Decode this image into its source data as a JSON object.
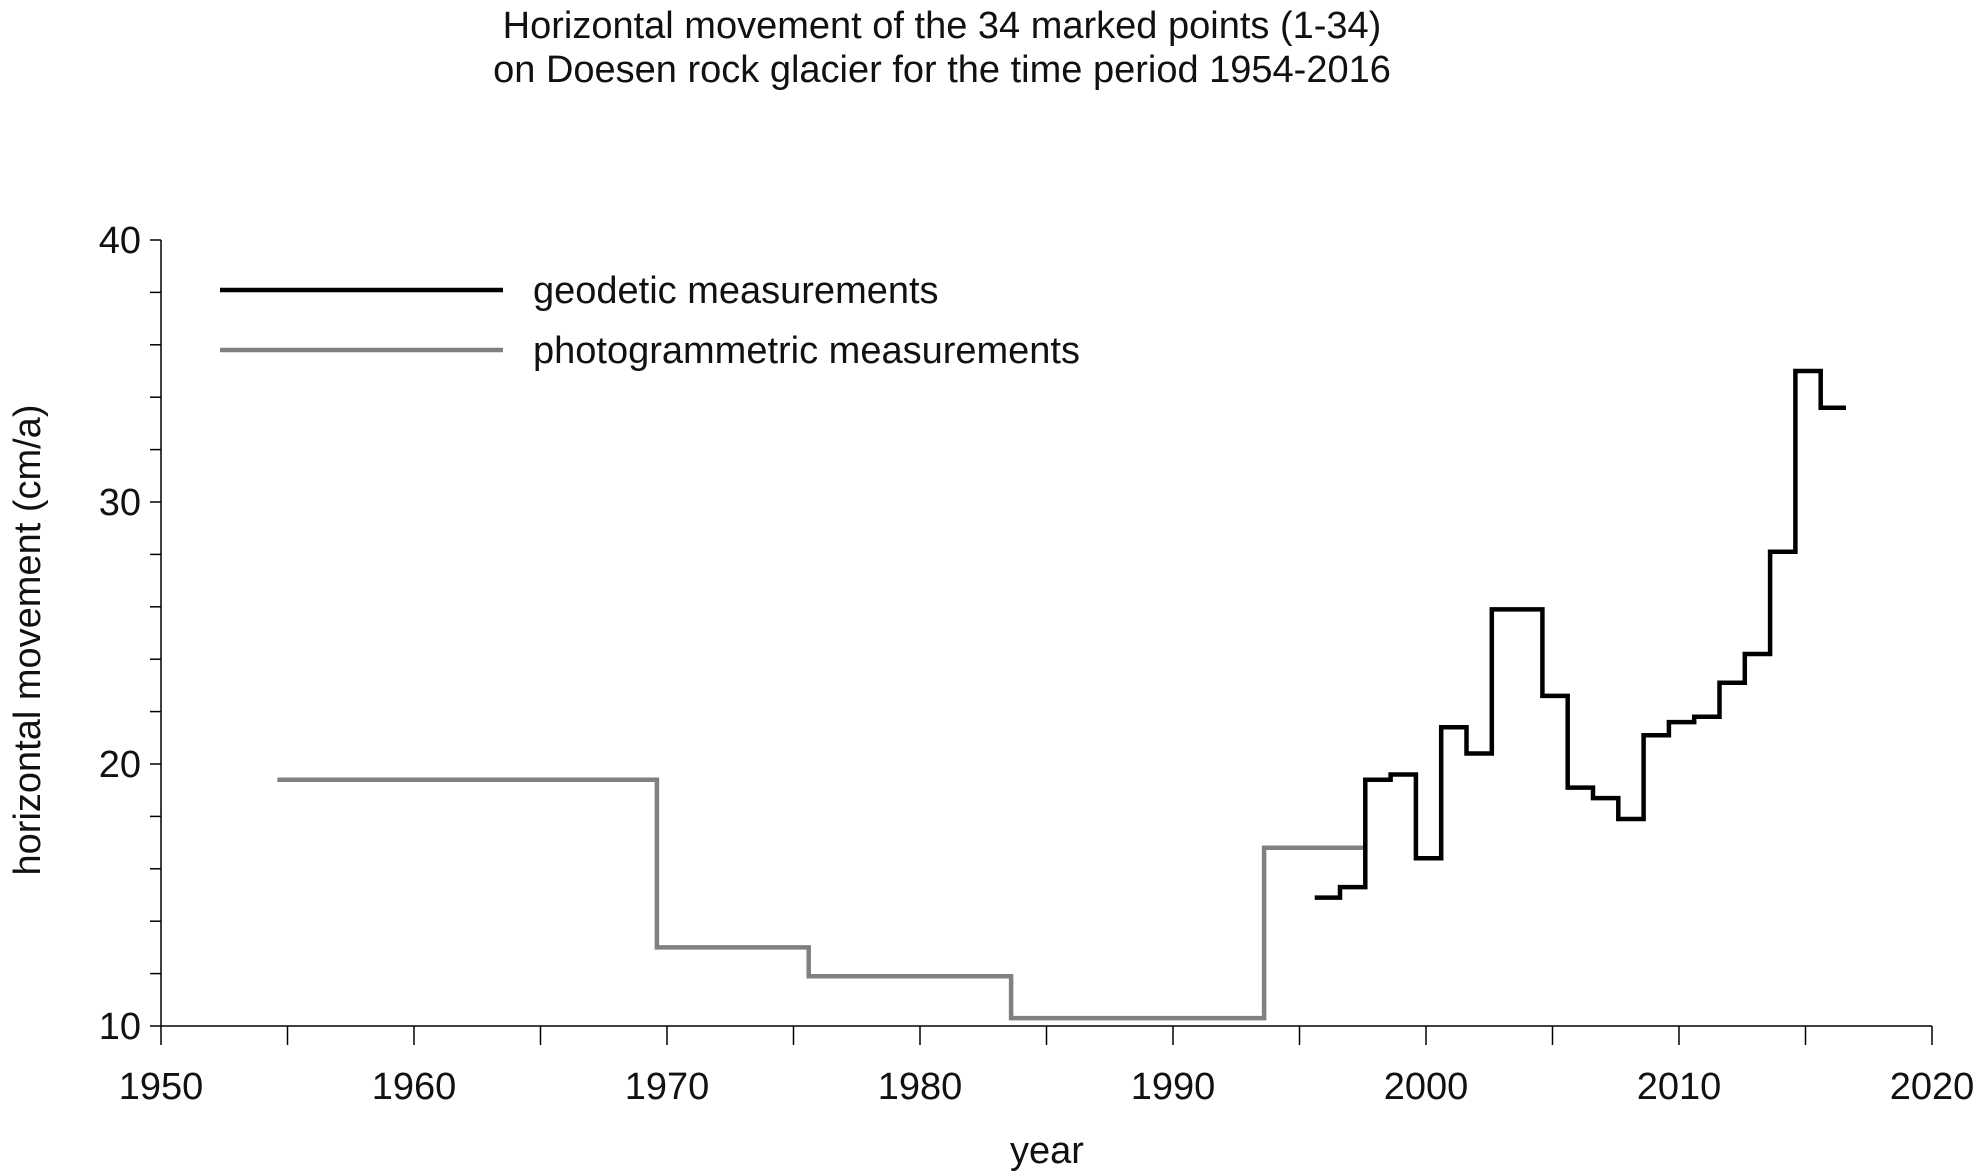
{
  "chart_data": {
    "type": "line",
    "title_lines": [
      "Horizontal movement of the 34 marked points (1-34)",
      "on Doesen rock glacier for the time period 1954-2016"
    ],
    "xlabel": "year",
    "ylabel": "horizontal movement (cm/a)",
    "xlim": [
      1950,
      2020
    ],
    "ylim": [
      10,
      40
    ],
    "x_ticks": [
      "1950",
      "1960",
      "1970",
      "1980",
      "1990",
      "2000",
      "2010",
      "2020"
    ],
    "y_ticks": [
      "10",
      "20",
      "30",
      "40"
    ],
    "grid": false,
    "legend_position": "top-left",
    "series": [
      {
        "name": "geodetic measurements",
        "color": "#000000",
        "step_segments": [
          {
            "from": 1995.6,
            "to": 1996.6,
            "value": 14.9
          },
          {
            "from": 1996.6,
            "to": 1997.6,
            "value": 15.3
          },
          {
            "from": 1997.6,
            "to": 1998.6,
            "value": 19.4
          },
          {
            "from": 1998.6,
            "to": 1999.6,
            "value": 19.6
          },
          {
            "from": 1999.6,
            "to": 2000.6,
            "value": 16.4
          },
          {
            "from": 2000.6,
            "to": 2001.6,
            "value": 21.4
          },
          {
            "from": 2001.6,
            "to": 2002.6,
            "value": 20.4
          },
          {
            "from": 2002.6,
            "to": 2004.6,
            "value": 25.9
          },
          {
            "from": 2004.6,
            "to": 2005.6,
            "value": 22.6
          },
          {
            "from": 2005.6,
            "to": 2006.6,
            "value": 19.1
          },
          {
            "from": 2006.6,
            "to": 2007.6,
            "value": 18.7
          },
          {
            "from": 2007.6,
            "to": 2008.6,
            "value": 17.9
          },
          {
            "from": 2008.6,
            "to": 2009.6,
            "value": 21.1
          },
          {
            "from": 2009.6,
            "to": 2010.6,
            "value": 21.6
          },
          {
            "from": 2010.6,
            "to": 2011.6,
            "value": 21.8
          },
          {
            "from": 2011.6,
            "to": 2012.6,
            "value": 23.1
          },
          {
            "from": 2012.6,
            "to": 2013.6,
            "value": 24.2
          },
          {
            "from": 2013.6,
            "to": 2014.6,
            "value": 28.1
          },
          {
            "from": 2014.6,
            "to": 2015.6,
            "value": 35.0
          },
          {
            "from": 2015.6,
            "to": 2016.6,
            "value": 33.6
          }
        ]
      },
      {
        "name": "photogrammetric measurements",
        "color": "#808080",
        "step_segments": [
          {
            "from": 1954.6,
            "to": 1969.6,
            "value": 19.4
          },
          {
            "from": 1969.6,
            "to": 1975.6,
            "value": 13.0
          },
          {
            "from": 1975.6,
            "to": 1983.6,
            "value": 11.9
          },
          {
            "from": 1983.6,
            "to": 1993.6,
            "value": 10.3
          },
          {
            "from": 1993.6,
            "to": 1997.6,
            "value": 16.8
          }
        ]
      }
    ]
  }
}
